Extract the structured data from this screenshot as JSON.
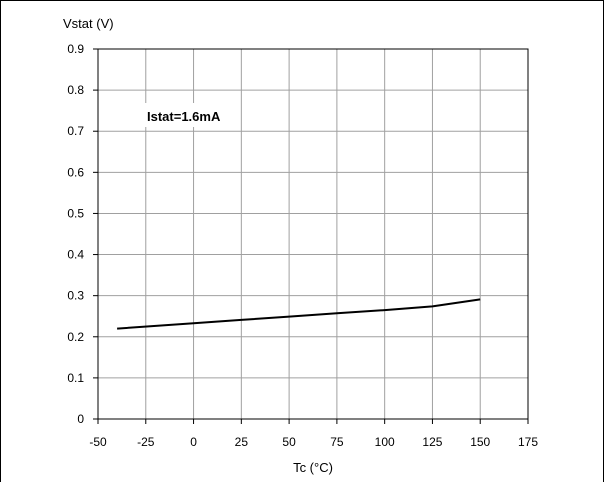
{
  "chart_data": {
    "type": "line",
    "title": "",
    "ylabel": "Vstat (V)",
    "xlabel": "Tc (°C)",
    "xlim": [
      -50,
      175
    ],
    "ylim": [
      0,
      0.9
    ],
    "x_ticks": [
      "-50",
      "-25",
      "0",
      "25",
      "50",
      "75",
      "100",
      "125",
      "150",
      "175"
    ],
    "y_ticks": [
      "0",
      "0.1",
      "0.2",
      "0.3",
      "0.4",
      "0.5",
      "0.6",
      "0.7",
      "0.8",
      "0.9"
    ],
    "grid": true,
    "annotation": "Istat=1.6mA",
    "series": [
      {
        "x": [
          -40,
          0,
          25,
          50,
          75,
          100,
          125,
          150
        ],
        "y": [
          0.22,
          0.233,
          0.241,
          0.249,
          0.257,
          0.265,
          0.274,
          0.291
        ],
        "color": "#000000"
      }
    ]
  }
}
